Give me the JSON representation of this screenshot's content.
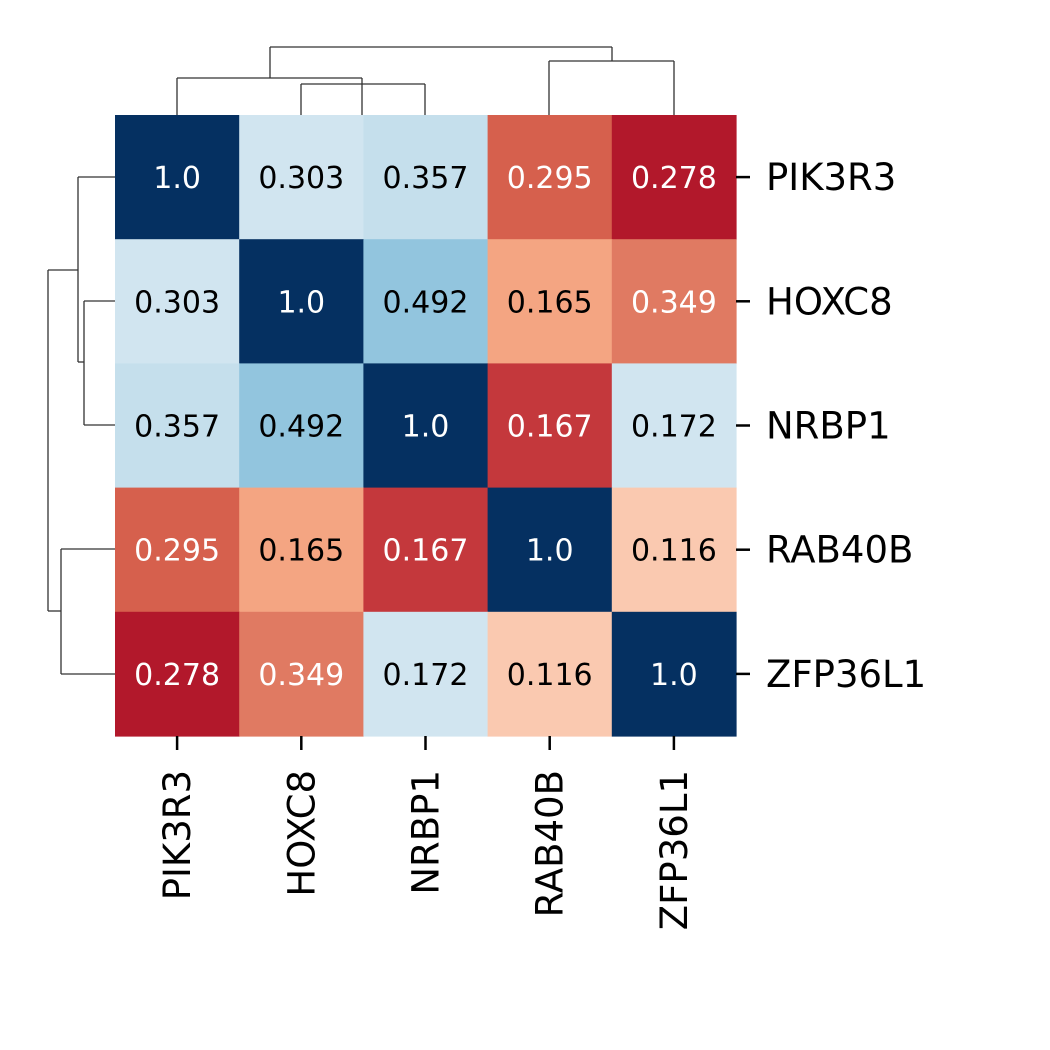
{
  "chart_data": {
    "type": "heatmap",
    "title": "",
    "xlabel": "",
    "ylabel": "",
    "rows": [
      "PIK3R3",
      "HOXC8",
      "NRBP1",
      "RAB40B",
      "ZFP36L1"
    ],
    "columns": [
      "PIK3R3",
      "HOXC8",
      "NRBP1",
      "RAB40B",
      "ZFP36L1"
    ],
    "values": [
      [
        1.0,
        0.303,
        0.357,
        0.295,
        0.278
      ],
      [
        0.303,
        1.0,
        0.492,
        0.165,
        0.349
      ],
      [
        0.357,
        0.492,
        1.0,
        0.167,
        0.172
      ],
      [
        0.295,
        0.165,
        0.167,
        1.0,
        0.116
      ],
      [
        0.278,
        0.349,
        0.172,
        0.116,
        1.0
      ]
    ],
    "labels": [
      [
        "1.0",
        "0.303",
        "0.357",
        "0.295",
        "0.278"
      ],
      [
        "0.303",
        "1.0",
        "0.492",
        "0.165",
        "0.349"
      ],
      [
        "0.357",
        "0.492",
        "1.0",
        "0.167",
        "0.172"
      ],
      [
        "0.295",
        "0.165",
        "0.167",
        "1.0",
        "0.116"
      ],
      [
        "0.278",
        "0.349",
        "0.172",
        "0.116",
        "1.0"
      ]
    ],
    "colors": [
      [
        "#053061",
        "#d1e5f0",
        "#c5dfec",
        "#d6604d",
        "#b2182b"
      ],
      [
        "#d1e5f0",
        "#053061",
        "#92c5de",
        "#f4a582",
        "#e07a62"
      ],
      [
        "#c5dfec",
        "#92c5de",
        "#053061",
        "#c4383c",
        "#d1e5f0"
      ],
      [
        "#d6604d",
        "#f4a582",
        "#c4383c",
        "#053061",
        "#fac9b0"
      ],
      [
        "#b2182b",
        "#e07a62",
        "#d1e5f0",
        "#fac9b0",
        "#053061"
      ]
    ],
    "label_colors": [
      [
        "#ffffff",
        "#000000",
        "#000000",
        "#ffffff",
        "#ffffff"
      ],
      [
        "#000000",
        "#ffffff",
        "#000000",
        "#000000",
        "#ffffff"
      ],
      [
        "#000000",
        "#000000",
        "#ffffff",
        "#ffffff",
        "#000000"
      ],
      [
        "#ffffff",
        "#000000",
        "#ffffff",
        "#ffffff",
        "#000000"
      ],
      [
        "#ffffff",
        "#ffffff",
        "#000000",
        "#000000",
        "#ffffff"
      ]
    ],
    "colormap": "RdBu",
    "colorbar": false,
    "dendrograms": [
      "top",
      "left"
    ]
  }
}
